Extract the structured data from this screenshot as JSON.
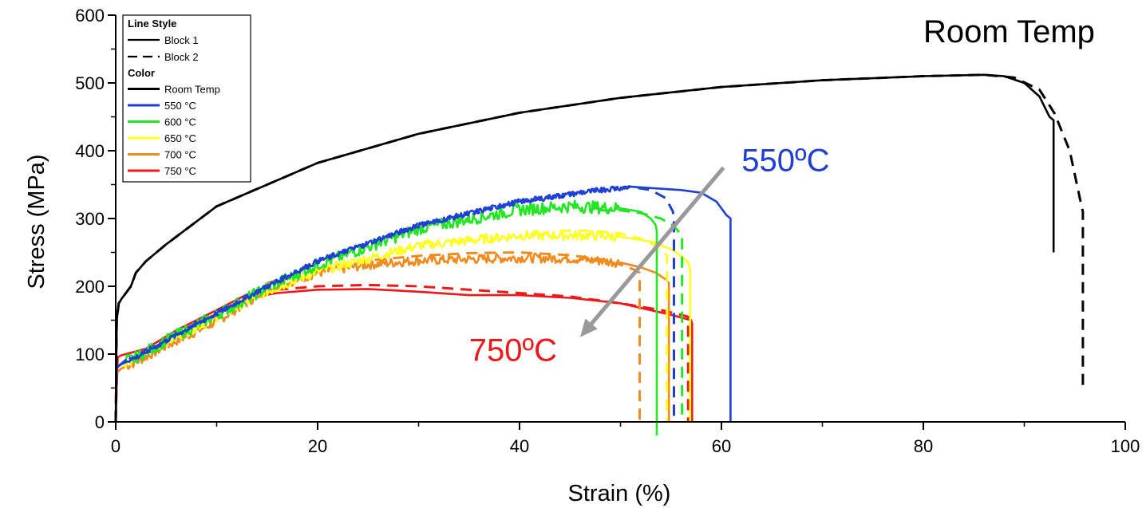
{
  "colors": {
    "room_temp": "#000000",
    "c550": "#1f3fd6",
    "c600": "#22e622",
    "c650": "#ffff22",
    "c700": "#f28a1e",
    "c750": "#f01818",
    "arrow": "#999999",
    "annot_550": "#1f3fd6",
    "annot_750": "#f01818",
    "annot_rt": "#000000"
  },
  "chart_data": {
    "type": "line",
    "title": "",
    "xlabel": "Strain (%)",
    "ylabel": "Stress (MPa)",
    "xlim": [
      0,
      100
    ],
    "ylim": [
      0,
      600
    ],
    "x_ticks": [
      0,
      20,
      40,
      60,
      80,
      100
    ],
    "y_ticks": [
      0,
      100,
      200,
      300,
      400,
      500,
      600
    ],
    "grid": false,
    "legend": {
      "position": "top-left",
      "line_style_heading": "Line Style",
      "line_styles": [
        {
          "label": "Block 1",
          "style": "solid"
        },
        {
          "label": "Block 2",
          "style": "dashed"
        }
      ],
      "color_heading": "Color",
      "colors": [
        {
          "label": "Room Temp",
          "color_key": "room_temp"
        },
        {
          "label": "550 °C",
          "color_key": "c550"
        },
        {
          "label": "600 °C",
          "color_key": "c600"
        },
        {
          "label": "650 °C",
          "color_key": "c650"
        },
        {
          "label": "700 °C",
          "color_key": "c700"
        },
        {
          "label": "750 °C",
          "color_key": "c750"
        }
      ]
    },
    "annotations": [
      {
        "text": "Room Temp",
        "color_key": "annot_rt",
        "at": [
          80,
          560
        ]
      },
      {
        "text": "550ºC",
        "color_key": "annot_550",
        "at": [
          62,
          370
        ]
      },
      {
        "text": "750ºC",
        "color_key": "annot_750",
        "at": [
          35,
          90
        ]
      }
    ],
    "arrow": {
      "from": [
        60.2,
        375
      ],
      "to": [
        46,
        125
      ]
    },
    "series": [
      {
        "temp": "Room Temp",
        "block": "Block 1",
        "color_key": "room_temp",
        "dash": false,
        "noise": 0,
        "x": [
          0,
          0.1,
          0.3,
          0.6,
          1,
          1.5,
          2,
          3,
          5,
          10,
          20,
          30,
          40,
          50,
          60,
          70,
          80,
          86,
          88,
          90,
          91.5,
          92.5,
          92.9,
          92.9
        ],
        "y": [
          0,
          150,
          175,
          182,
          190,
          200,
          220,
          237,
          262,
          318,
          382,
          425,
          456,
          478,
          494,
          504,
          510,
          512,
          510,
          500,
          480,
          450,
          445,
          250
        ]
      },
      {
        "temp": "Room Temp",
        "block": "Block 2",
        "color_key": "room_temp",
        "dash": true,
        "noise": 0,
        "x": [
          0,
          0.1,
          0.3,
          0.6,
          1,
          1.5,
          2,
          3,
          5,
          10,
          20,
          30,
          40,
          50,
          60,
          70,
          80,
          86,
          89,
          91.5,
          93,
          94.5,
          95.5,
          95.8,
          95.8
        ],
        "y": [
          0,
          150,
          175,
          182,
          190,
          200,
          220,
          237,
          262,
          318,
          382,
          425,
          456,
          478,
          494,
          504,
          510,
          512,
          508,
          490,
          455,
          400,
          330,
          310,
          50
        ]
      },
      {
        "temp": "550 °C",
        "block": "Block 1",
        "color_key": "c550",
        "dash": false,
        "noise": 4,
        "x": [
          0,
          0.1,
          0.5,
          1,
          2,
          5,
          10,
          15,
          20,
          30,
          40,
          48,
          51,
          53,
          56,
          58,
          59.5,
          60.5,
          60.9,
          60.9
        ],
        "y": [
          0,
          80,
          85,
          90,
          95,
          120,
          160,
          200,
          237,
          290,
          325,
          342,
          347,
          345,
          342,
          338,
          325,
          305,
          300,
          0
        ]
      },
      {
        "temp": "550 °C",
        "block": "Block 2",
        "color_key": "c550",
        "dash": true,
        "noise": 3,
        "x": [
          0,
          0.1,
          0.5,
          1,
          2,
          5,
          10,
          15,
          20,
          30,
          40,
          48,
          51,
          53,
          54.5,
          55.2,
          55.3,
          55.3
        ],
        "y": [
          0,
          80,
          85,
          90,
          95,
          120,
          160,
          200,
          237,
          290,
          325,
          342,
          347,
          342,
          330,
          310,
          295,
          0
        ]
      },
      {
        "temp": "600 °C",
        "block": "Block 1",
        "color_key": "c600",
        "dash": false,
        "noise": 9,
        "x": [
          0,
          0.1,
          0.5,
          1,
          2,
          5,
          10,
          15,
          20,
          30,
          40,
          45,
          50,
          52,
          53,
          53.5,
          53.6,
          53.6
        ],
        "y": [
          0,
          80,
          85,
          90,
          95,
          120,
          158,
          198,
          232,
          285,
          313,
          318,
          315,
          310,
          300,
          290,
          280,
          -20
        ]
      },
      {
        "temp": "600 °C",
        "block": "Block 2",
        "color_key": "c600",
        "dash": true,
        "noise": 0,
        "x": [
          48,
          50,
          52,
          54,
          55.2,
          55.8,
          56.1,
          56.1
        ],
        "y": [
          312,
          312,
          308,
          300,
          290,
          280,
          275,
          0
        ]
      },
      {
        "temp": "650 °C",
        "block": "Block 1",
        "color_key": "c650",
        "dash": false,
        "noise": 7,
        "x": [
          0,
          0.1,
          0.5,
          1,
          2,
          5,
          10,
          15,
          20,
          30,
          40,
          47,
          50,
          53,
          55,
          56,
          56.7,
          56.9,
          56.9
        ],
        "y": [
          0,
          80,
          85,
          88,
          93,
          118,
          155,
          192,
          222,
          260,
          275,
          275,
          273,
          266,
          255,
          245,
          235,
          225,
          0
        ]
      },
      {
        "temp": "650 °C",
        "block": "Block 2",
        "color_key": "c650",
        "dash": true,
        "noise": 0,
        "x": [
          44,
          47,
          50,
          52,
          53.5,
          54.3,
          54.6,
          54.6
        ],
        "y": [
          282,
          282,
          278,
          270,
          260,
          250,
          245,
          0
        ]
      },
      {
        "temp": "700 °C",
        "block": "Block 1",
        "color_key": "c700",
        "dash": false,
        "noise": 7,
        "x": [
          0,
          0.1,
          0.5,
          1,
          2,
          5,
          10,
          15,
          20,
          25,
          30,
          40,
          45,
          50,
          52,
          53.5,
          54.5,
          54.8,
          54.8
        ],
        "y": [
          0,
          72,
          78,
          82,
          88,
          112,
          148,
          195,
          220,
          232,
          238,
          242,
          241,
          235,
          228,
          220,
          210,
          205,
          0
        ]
      },
      {
        "temp": "700 °C",
        "block": "Block 2",
        "color_key": "c700",
        "dash": true,
        "noise": 0,
        "x": [
          15,
          20,
          25,
          30,
          35,
          40,
          45,
          48,
          50,
          51.3,
          51.9,
          51.9
        ],
        "y": [
          205,
          225,
          238,
          245,
          249,
          250,
          246,
          240,
          232,
          225,
          220,
          0
        ]
      },
      {
        "temp": "750 °C",
        "block": "Block 1",
        "color_key": "c750",
        "dash": false,
        "noise": 0,
        "x": [
          0,
          0.2,
          0.5,
          1,
          3,
          6,
          10,
          13,
          14,
          16,
          20,
          25,
          30,
          35,
          40,
          45,
          50,
          55,
          57,
          57.1,
          57.1
        ],
        "y": [
          0,
          95,
          98,
          100,
          108,
          135,
          165,
          188,
          185,
          190,
          195,
          196,
          192,
          187,
          187,
          183,
          175,
          158,
          150,
          145,
          0
        ]
      },
      {
        "temp": "750 °C",
        "block": "Block 2",
        "color_key": "c750",
        "dash": true,
        "noise": 0,
        "x": [
          16,
          20,
          25,
          30,
          35,
          40,
          45,
          50,
          54,
          56,
          56.7,
          56.7
        ],
        "y": [
          195,
          200,
          202,
          200,
          195,
          190,
          185,
          175,
          165,
          158,
          155,
          0
        ]
      }
    ]
  }
}
